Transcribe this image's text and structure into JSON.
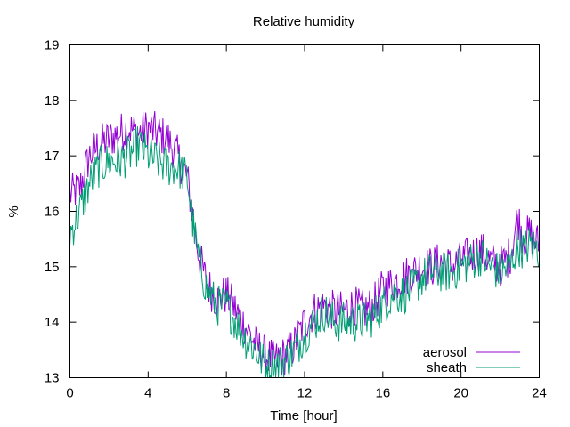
{
  "chart_data": {
    "type": "line",
    "title": "Relative humidity",
    "xlabel": "Time [hour]",
    "ylabel": "%",
    "xlim": [
      0,
      24
    ],
    "ylim": [
      13,
      19
    ],
    "xticks": [
      0,
      4,
      8,
      12,
      16,
      20,
      24
    ],
    "yticks": [
      13,
      14,
      15,
      16,
      17,
      18,
      19
    ],
    "grid": false,
    "legend_position": "bottom-right",
    "series": [
      {
        "name": "aerosol",
        "color": "#9400d3",
        "x": [
          0,
          0.5,
          1,
          1.5,
          2,
          2.5,
          3,
          3.5,
          4,
          4.5,
          5,
          5.5,
          6,
          6.25,
          6.5,
          6.75,
          7,
          7.5,
          8,
          8.5,
          9,
          9.5,
          10,
          10.5,
          11,
          11.5,
          12,
          12.5,
          13,
          13.5,
          14,
          14.5,
          15,
          15.5,
          16,
          16.5,
          17,
          17.5,
          18,
          18.5,
          19,
          19.5,
          20,
          20.5,
          21,
          21.5,
          22,
          22.5,
          22.9,
          23.2,
          23.5,
          24
        ],
        "y": [
          16.3,
          16.4,
          17.0,
          17.2,
          17.3,
          17.4,
          17.5,
          17.4,
          17.5,
          17.4,
          17.3,
          17.0,
          16.6,
          16.0,
          15.4,
          15.0,
          14.7,
          14.4,
          14.5,
          14.2,
          13.9,
          13.6,
          13.4,
          13.3,
          13.4,
          13.6,
          14.0,
          14.2,
          14.3,
          14.2,
          14.2,
          14.3,
          14.2,
          14.3,
          14.6,
          14.7,
          14.8,
          14.9,
          15.0,
          15.0,
          15.1,
          15.0,
          15.1,
          15.2,
          15.3,
          15.1,
          15.0,
          15.2,
          15.9,
          15.5,
          15.6,
          15.4
        ]
      },
      {
        "name": "sheath",
        "color": "#009e73",
        "x": [
          0,
          0.5,
          1,
          1.5,
          2,
          2.5,
          3,
          3.5,
          4,
          4.5,
          5,
          5.5,
          6,
          6.25,
          6.5,
          6.75,
          7,
          7.5,
          8,
          8.5,
          9,
          9.5,
          10,
          10.5,
          11,
          11.5,
          12,
          12.5,
          13,
          13.5,
          14,
          14.5,
          15,
          15.5,
          16,
          16.5,
          17,
          17.5,
          18,
          18.5,
          19,
          19.5,
          20,
          20.5,
          21,
          21.5,
          22,
          22.5,
          22.9,
          23.2,
          23.5,
          24
        ],
        "y": [
          15.6,
          16.0,
          16.5,
          16.8,
          16.9,
          16.9,
          17.0,
          17.2,
          17.0,
          16.9,
          16.8,
          16.8,
          16.6,
          15.9,
          15.3,
          14.9,
          14.6,
          14.3,
          14.3,
          14.0,
          13.7,
          13.5,
          13.2,
          13.2,
          13.3,
          13.5,
          13.8,
          14.0,
          14.2,
          14.0,
          14.0,
          14.0,
          14.0,
          14.1,
          14.3,
          14.5,
          14.5,
          14.6,
          14.8,
          14.9,
          14.9,
          14.9,
          15.0,
          15.1,
          15.2,
          15.0,
          14.9,
          15.0,
          15.4,
          15.3,
          15.4,
          15.3
        ]
      }
    ]
  }
}
